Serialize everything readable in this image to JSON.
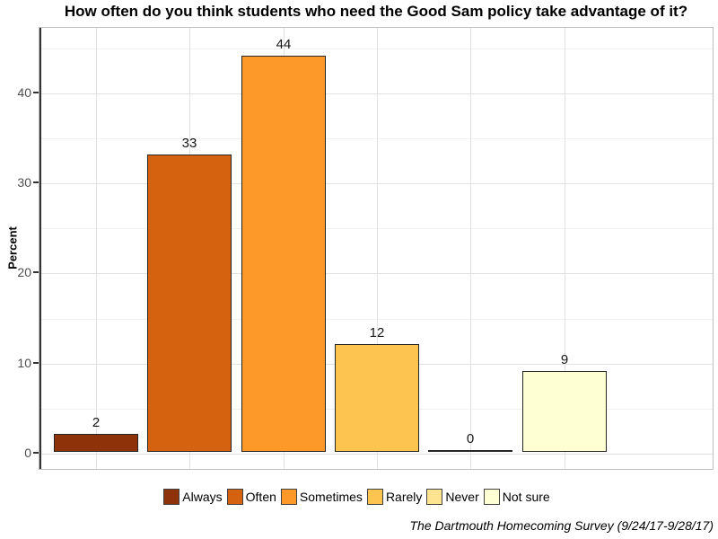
{
  "chart_data": {
    "type": "bar",
    "title": "How often do you think students who need the Good Sam policy take advantage of it?",
    "categories": [
      "Always",
      "Often",
      "Sometimes",
      "Rarely",
      "Never",
      "Not sure"
    ],
    "values": [
      2,
      33,
      44,
      12,
      0,
      9
    ],
    "bar_labels": [
      "2",
      "33",
      "44",
      "12",
      "0",
      "9"
    ],
    "bar_colors": [
      "#8e3309",
      "#d4620e",
      "#fd9929",
      "#fdc44f",
      "#fee391",
      "#ffffd4"
    ],
    "xlabel": "",
    "ylabel": "Percent",
    "ylim": [
      -1.9,
      47.28
    ],
    "y_major_ticks": [
      0,
      10,
      20,
      30,
      40
    ],
    "y_minor_ticks": [
      5,
      15,
      25,
      35,
      45
    ],
    "grid": true,
    "legend_position": "bottom",
    "caption": "The Dartmouth Homecoming Survey (9/24/17-9/28/17)"
  },
  "colors": {
    "bar_border": "#262626",
    "panel_border": "#bfbfbf",
    "grid_major": "#e2e2e2",
    "grid_minor": "#f1f1f1",
    "axis_line": "#333333",
    "tick_label": "#4d4d4d"
  }
}
